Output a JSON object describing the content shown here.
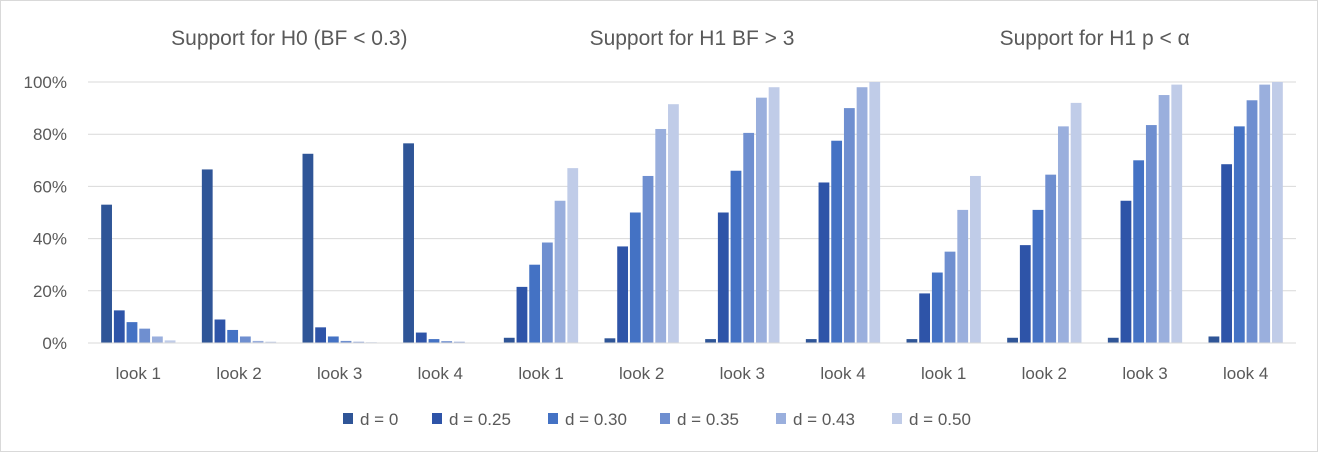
{
  "chart_data": {
    "type": "bar",
    "ylim": [
      0,
      100
    ],
    "y_ticks": [
      "0%",
      "20%",
      "40%",
      "60%",
      "80%",
      "100%"
    ],
    "grid": true,
    "legend_position": "bottom",
    "colors": [
      "#2f5597",
      "#2e54a8",
      "#4472c4",
      "#6f8fd0",
      "#9aafdd",
      "#c0cce8"
    ],
    "series_names": [
      "d = 0",
      "d = 0.25",
      "d = 0.30",
      "d = 0.35",
      "d = 0.43",
      "d = 0.50"
    ],
    "panels": [
      {
        "title": "Support for H0 (BF < 0.3)",
        "categories": [
          "look 1",
          "look 2",
          "look 3",
          "look 4"
        ],
        "series": [
          {
            "name": "d = 0",
            "values": [
              53,
              66.5,
              72.5,
              76.5
            ]
          },
          {
            "name": "d = 0.25",
            "values": [
              12.5,
              9,
              6,
              4
            ]
          },
          {
            "name": "d = 0.30",
            "values": [
              8,
              5,
              2.5,
              1.5
            ]
          },
          {
            "name": "d = 0.35",
            "values": [
              5.5,
              2.5,
              0.8,
              0.7
            ]
          },
          {
            "name": "d = 0.43",
            "values": [
              2.5,
              0.8,
              0.5,
              0.5
            ]
          },
          {
            "name": "d = 0.50",
            "values": [
              1,
              0.5,
              0.3,
              0
            ]
          }
        ]
      },
      {
        "title": "Support for H1 BF > 3",
        "categories": [
          "look 1",
          "look 2",
          "look 3",
          "look 4"
        ],
        "series": [
          {
            "name": "d = 0",
            "values": [
              2,
              1.8,
              1.5,
              1.5
            ]
          },
          {
            "name": "d = 0.25",
            "values": [
              21.5,
              37,
              50,
              61.5
            ]
          },
          {
            "name": "d = 0.30",
            "values": [
              30,
              50,
              66,
              77.5
            ]
          },
          {
            "name": "d = 0.35",
            "values": [
              38.5,
              64,
              80.5,
              90
            ]
          },
          {
            "name": "d = 0.43",
            "values": [
              54.5,
              82,
              94,
              98
            ]
          },
          {
            "name": "d = 0.50",
            "values": [
              67,
              91.5,
              98,
              100
            ]
          }
        ]
      },
      {
        "title": "Support for H1 p < α",
        "categories": [
          "look 1",
          "look 2",
          "look 3",
          "look 4"
        ],
        "series": [
          {
            "name": "d = 0",
            "values": [
              1.5,
              2,
              2,
              2.5
            ]
          },
          {
            "name": "d = 0.25",
            "values": [
              19,
              37.5,
              54.5,
              68.5
            ]
          },
          {
            "name": "d = 0.30",
            "values": [
              27,
              51,
              70,
              83
            ]
          },
          {
            "name": "d = 0.35",
            "values": [
              35,
              64.5,
              83.5,
              93
            ]
          },
          {
            "name": "d = 0.43",
            "values": [
              51,
              83,
              95,
              99
            ]
          },
          {
            "name": "d = 0.50",
            "values": [
              64,
              92,
              99,
              100
            ]
          }
        ]
      }
    ]
  }
}
